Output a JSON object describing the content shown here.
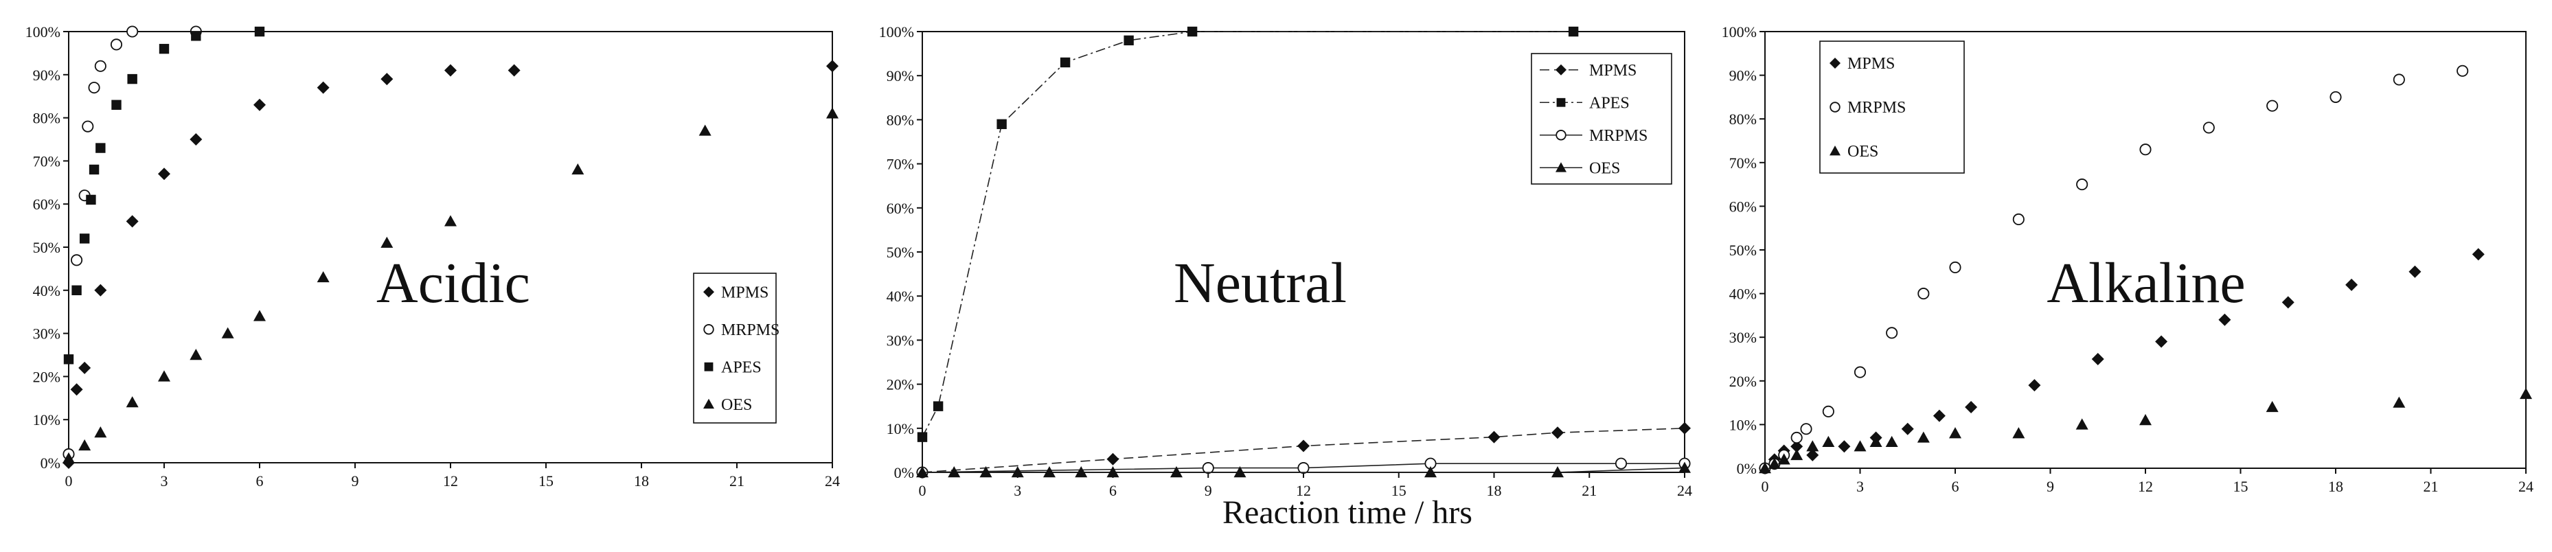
{
  "figure": {
    "xlabel": "Reaction time / hrs"
  },
  "chart_data": [
    {
      "type": "scatter",
      "label": "Acidic",
      "xlim": [
        0,
        24
      ],
      "ylim": [
        0,
        100
      ],
      "x_ticks": [
        0,
        3,
        6,
        9,
        12,
        15,
        18,
        21,
        24
      ],
      "y_ticks": [
        "0%",
        "10%",
        "20%",
        "30%",
        "40%",
        "50%",
        "60%",
        "70%",
        "80%",
        "90%",
        "100%"
      ],
      "legend": {
        "position": "right",
        "entries": [
          "MPMS",
          "MRPMS",
          "APES",
          "OES"
        ]
      },
      "series": [
        {
          "name": "MPMS",
          "marker": "diamond",
          "line": "none",
          "x": [
            0,
            0.25,
            0.5,
            1,
            2,
            3,
            4,
            6,
            8,
            10,
            12,
            14,
            24
          ],
          "y": [
            0,
            17,
            22,
            40,
            56,
            67,
            75,
            83,
            87,
            89,
            91,
            91,
            92
          ]
        },
        {
          "name": "MRPMS",
          "marker": "circle",
          "line": "none",
          "x": [
            0,
            0.25,
            0.5,
            0.6,
            0.8,
            1,
            1.5,
            2,
            4
          ],
          "y": [
            2,
            47,
            62,
            78,
            87,
            92,
            97,
            100,
            100
          ]
        },
        {
          "name": "APES",
          "marker": "square",
          "line": "none",
          "x": [
            0,
            0.25,
            0.5,
            0.7,
            0.8,
            1,
            1.5,
            2,
            3,
            4,
            6
          ],
          "y": [
            24,
            40,
            52,
            61,
            68,
            73,
            83,
            89,
            96,
            99,
            100
          ]
        },
        {
          "name": "OES",
          "marker": "triangle",
          "line": "none",
          "x": [
            0,
            0.5,
            1,
            2,
            3,
            4,
            5,
            6,
            8,
            10,
            12,
            16,
            20,
            24
          ],
          "y": [
            1,
            4,
            7,
            14,
            20,
            25,
            30,
            34,
            43,
            51,
            56,
            68,
            77,
            81
          ]
        }
      ]
    },
    {
      "type": "line",
      "label": "Neutral",
      "xlim": [
        0,
        24
      ],
      "ylim": [
        0,
        100
      ],
      "x_ticks": [
        0,
        3,
        6,
        9,
        12,
        15,
        18,
        21,
        24
      ],
      "y_ticks": [
        "0%",
        "10%",
        "20%",
        "30%",
        "40%",
        "50%",
        "60%",
        "70%",
        "80%",
        "90%",
        "100%"
      ],
      "legend": {
        "position": "top-right",
        "entries": [
          "MPMS",
          "APES",
          "MRPMS",
          "OES"
        ]
      },
      "series": [
        {
          "name": "MPMS",
          "marker": "diamond",
          "line": "dashed",
          "x": [
            0,
            6,
            12,
            18,
            20,
            24
          ],
          "y": [
            0,
            3,
            6,
            8,
            9,
            10
          ]
        },
        {
          "name": "APES",
          "marker": "square",
          "line": "dashdot",
          "x": [
            0,
            0.5,
            2.5,
            4.5,
            6.5,
            8.5,
            20.5
          ],
          "y": [
            8,
            15,
            79,
            93,
            98,
            100,
            100
          ]
        },
        {
          "name": "MRPMS",
          "marker": "circle",
          "line": "solid",
          "x": [
            0,
            9,
            12,
            16,
            22,
            24
          ],
          "y": [
            0,
            1,
            1,
            2,
            2,
            2
          ]
        },
        {
          "name": "OES",
          "marker": "triangle",
          "line": "solid",
          "x": [
            0,
            1,
            2,
            3,
            4,
            5,
            6,
            8,
            10,
            16,
            20,
            24
          ],
          "y": [
            0,
            0,
            0,
            0,
            0,
            0,
            0,
            0,
            0,
            0,
            0,
            1
          ]
        }
      ]
    },
    {
      "type": "scatter",
      "label": "Alkaline",
      "xlim": [
        0,
        24
      ],
      "ylim": [
        0,
        100
      ],
      "x_ticks": [
        0,
        3,
        6,
        9,
        12,
        15,
        18,
        21,
        24
      ],
      "y_ticks": [
        "0%",
        "10%",
        "20%",
        "30%",
        "40%",
        "50%",
        "60%",
        "70%",
        "80%",
        "90%",
        "100%"
      ],
      "legend": {
        "position": "top-left",
        "entries": [
          "MPMS",
          "MRPMS",
          "OES"
        ]
      },
      "series": [
        {
          "name": "MPMS",
          "marker": "diamond",
          "line": "none",
          "x": [
            0,
            0.3,
            0.6,
            1,
            1.5,
            2.5,
            3.5,
            4.5,
            5.5,
            6.5,
            8.5,
            10.5,
            12.5,
            14.5,
            16.5,
            18.5,
            20.5,
            22.5
          ],
          "y": [
            0,
            2,
            4,
            5,
            3,
            5,
            7,
            9,
            12,
            14,
            19,
            25,
            29,
            34,
            38,
            42,
            45,
            49
          ]
        },
        {
          "name": "MRPMS",
          "marker": "circle",
          "line": "none",
          "x": [
            0,
            0.3,
            0.6,
            1,
            1.3,
            2,
            3,
            4,
            5,
            6,
            8,
            10,
            12,
            14,
            16,
            18,
            20,
            22
          ],
          "y": [
            0,
            1,
            3,
            7,
            9,
            13,
            22,
            31,
            40,
            46,
            57,
            65,
            73,
            78,
            83,
            85,
            89,
            91
          ]
        },
        {
          "name": "OES",
          "marker": "triangle",
          "line": "none",
          "x": [
            0,
            0.3,
            0.6,
            1,
            1.5,
            2,
            3,
            3.5,
            4,
            5,
            6,
            8,
            10,
            12,
            16,
            20,
            24
          ],
          "y": [
            0,
            1,
            2,
            3,
            5,
            6,
            5,
            6,
            6,
            7,
            8,
            8,
            10,
            11,
            14,
            15,
            17
          ]
        }
      ]
    }
  ]
}
